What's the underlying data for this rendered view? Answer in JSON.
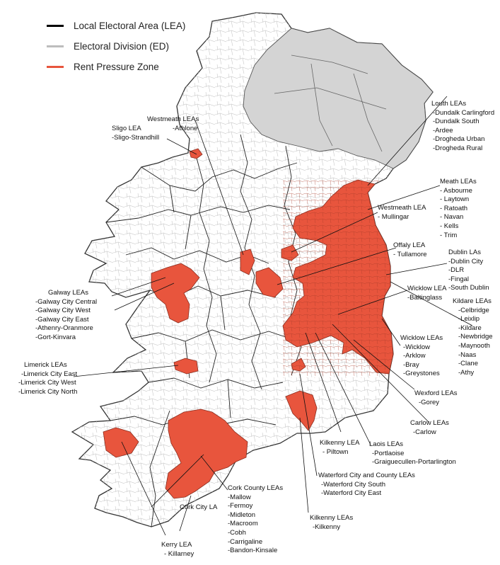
{
  "legend": [
    {
      "label": "Local Electoral Area (LEA)",
      "color": "#000000"
    },
    {
      "label": "Electoral Division (ED)",
      "color": "#bdbdbd"
    },
    {
      "label": "Rent Pressure Zone",
      "color": "#e8553d"
    }
  ],
  "colors": {
    "rpz_fill": "#e8553d",
    "rpz_border": "#8a2e20",
    "northern_ireland_fill": "#d4d4d4",
    "land_fill": "#ffffff",
    "coast": "#333333",
    "ed_lines": "#bdbdbd",
    "leader_lines": "#111111"
  },
  "callouts": [
    {
      "id": "louth",
      "title": "Louth LEAs",
      "items": [
        "-Dundalk Carlingford",
        "-Dundalk South",
        "-Ardee",
        "-Drogheda Urban",
        "-Drogheda Rural"
      ]
    },
    {
      "id": "westmeath-athlone",
      "title": "Westmeath LEAs",
      "items": [
        "-Athlone"
      ]
    },
    {
      "id": "sligo",
      "title": "Sligo LEA",
      "items": [
        "-Sligo-Strandhill"
      ]
    },
    {
      "id": "meath",
      "title": "Meath LEAs",
      "items": [
        "- Asbourne",
        "- Laytown",
        "- Ratoath",
        "- Navan",
        "- Kells",
        "- Trim"
      ]
    },
    {
      "id": "westmeath-mullingar",
      "title": "Westmeath LEA",
      "items": [
        "- Mullingar"
      ]
    },
    {
      "id": "offaly",
      "title": "Offaly LEA",
      "items": [
        "- Tullamore"
      ]
    },
    {
      "id": "dublin",
      "title": "Dublin LAs",
      "items": [
        "-Dublin City",
        "-DLR",
        "-Fingal",
        "-South Dublin"
      ]
    },
    {
      "id": "galway",
      "title": "Galway LEAs",
      "items": [
        "-Galway City Central",
        "-Galway City West",
        "-Galway City East",
        "-Athenry-Oranmore",
        "-Gort-Kinvara"
      ]
    },
    {
      "id": "wicklow-baltinglass",
      "title": "Wicklow LEA",
      "items": [
        "-Baltinglass"
      ]
    },
    {
      "id": "kildare",
      "title": "Kildare LEAs",
      "items": [
        "-Celbridge",
        "-Leixlip",
        "-Kildare",
        "-Newbridge",
        "-Maynooth",
        "-Naas",
        "-Clane",
        "-Athy"
      ]
    },
    {
      "id": "wicklow",
      "title": "Wicklow LEAs",
      "items": [
        "-Wicklow",
        "-Arklow",
        "-Bray",
        "-Greystones"
      ]
    },
    {
      "id": "limerick",
      "title": "Limerick LEAs",
      "items": [
        "-Limerick City East",
        "-Limerick City West",
        "-Limerick City North"
      ]
    },
    {
      "id": "wexford",
      "title": "Wexford LEAs",
      "items": [
        "-Gorey"
      ]
    },
    {
      "id": "carlow",
      "title": "Carlow LEAs",
      "items": [
        "-Carlow"
      ]
    },
    {
      "id": "kilkenny-piltown",
      "title": "Kilkenny LEA",
      "items": [
        "- Piltown"
      ]
    },
    {
      "id": "laois",
      "title": "Laois LEAs",
      "items": [
        "-Portlaoise",
        "-Graiguecullen-Portarlington"
      ]
    },
    {
      "id": "waterford",
      "title": "Waterford City and County LEAs",
      "items": [
        "-Waterford City South",
        "-Waterford City East"
      ]
    },
    {
      "id": "cork-county",
      "title": "Cork County LEAs",
      "items": [
        "-Mallow",
        "-Fermoy",
        "-Midleton",
        "-Macroom",
        "-Cobh",
        "-Carrigaline",
        "-Bandon-Kinsale"
      ]
    },
    {
      "id": "cork-city",
      "title": "Cork City LA",
      "items": []
    },
    {
      "id": "kilkenny",
      "title": "Kilkenny LEAs",
      "items": [
        "-Kilkenny"
      ]
    },
    {
      "id": "kerry",
      "title": "Kerry LEA",
      "items": [
        "- Killarney"
      ]
    }
  ]
}
